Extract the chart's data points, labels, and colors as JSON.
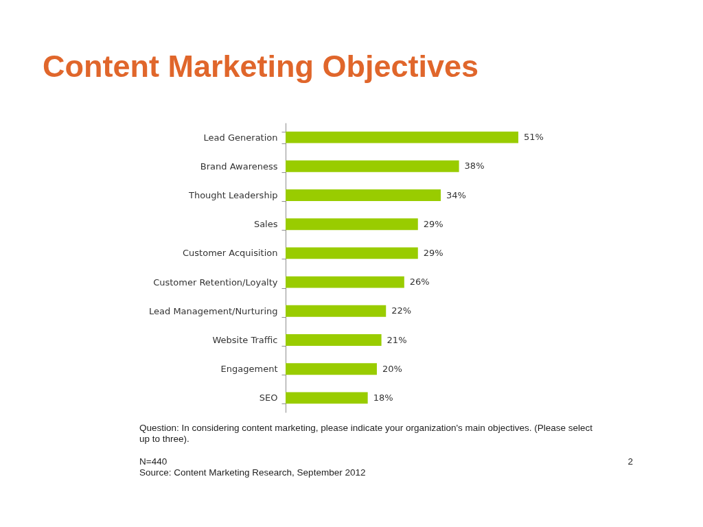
{
  "chart_data": {
    "type": "bar",
    "orientation": "horizontal",
    "title": "Content Marketing Objectives",
    "categories": [
      "Lead Generation",
      "Brand Awareness",
      "Thought Leadership",
      "Sales",
      "Customer Acquisition",
      "Customer Retention/Loyalty",
      "Lead Management/Nurturing",
      "Website Traffic",
      "Engagement",
      "SEO"
    ],
    "values": [
      51,
      38,
      34,
      29,
      29,
      26,
      22,
      21,
      20,
      18
    ],
    "value_labels": [
      "51%",
      "38%",
      "34%",
      "29%",
      "29%",
      "26%",
      "22%",
      "21%",
      "20%",
      "18%"
    ],
    "color": "#99cc00",
    "annotations": [
      "Question: In considering content marketing, please indicate your organization's main objectives. (Please select up to three).",
      "N=440",
      "Source: Content Marketing Research, September 2012",
      "2"
    ]
  }
}
